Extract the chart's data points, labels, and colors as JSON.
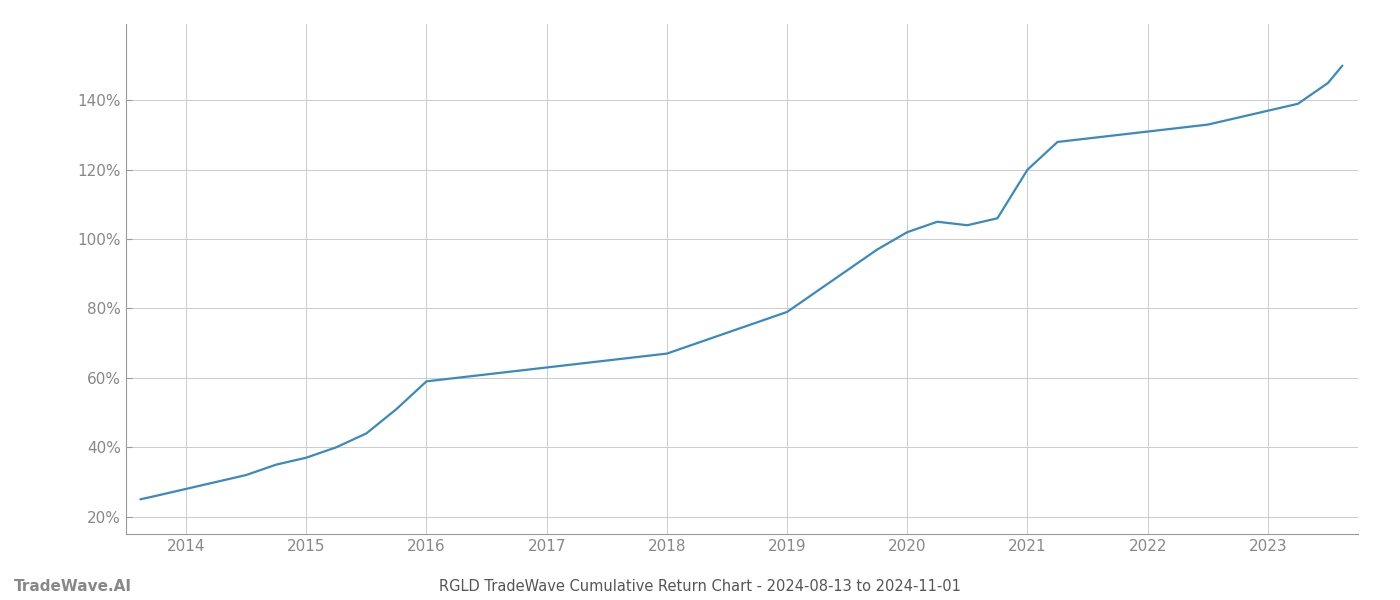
{
  "title": "RGLD TradeWave Cumulative Return Chart - 2024-08-13 to 2024-11-01",
  "watermark": "TradeWave.AI",
  "line_color": "#3a8abf",
  "background_color": "#ffffff",
  "grid_color": "#cccccc",
  "x_years": [
    2014,
    2015,
    2016,
    2017,
    2018,
    2019,
    2020,
    2021,
    2022,
    2023
  ],
  "x_values": [
    2013.62,
    2013.75,
    2014.0,
    2014.25,
    2014.5,
    2014.75,
    2015.0,
    2015.25,
    2015.5,
    2015.75,
    2016.0,
    2016.25,
    2016.5,
    2016.75,
    2017.0,
    2017.25,
    2017.5,
    2017.75,
    2018.0,
    2018.25,
    2018.5,
    2018.75,
    2019.0,
    2019.25,
    2019.5,
    2019.75,
    2020.0,
    2020.25,
    2020.5,
    2020.75,
    2021.0,
    2021.25,
    2021.5,
    2021.75,
    2022.0,
    2022.25,
    2022.5,
    2022.75,
    2023.0,
    2023.25,
    2023.5,
    2023.62
  ],
  "y_values": [
    25,
    26,
    28,
    30,
    32,
    35,
    37,
    40,
    44,
    51,
    59,
    60,
    61,
    62,
    63,
    64,
    65,
    66,
    67,
    70,
    73,
    76,
    79,
    85,
    91,
    97,
    102,
    105,
    104,
    106,
    120,
    128,
    129,
    130,
    131,
    132,
    133,
    135,
    137,
    139,
    145,
    150
  ],
  "ylim": [
    15,
    162
  ],
  "yticks": [
    20,
    40,
    60,
    80,
    100,
    120,
    140
  ],
  "xlim": [
    2013.5,
    2023.75
  ],
  "title_fontsize": 10.5,
  "tick_fontsize": 11,
  "watermark_fontsize": 11,
  "line_width": 1.6,
  "spine_color": "#999999",
  "tick_color": "#888888",
  "title_color": "#555555"
}
